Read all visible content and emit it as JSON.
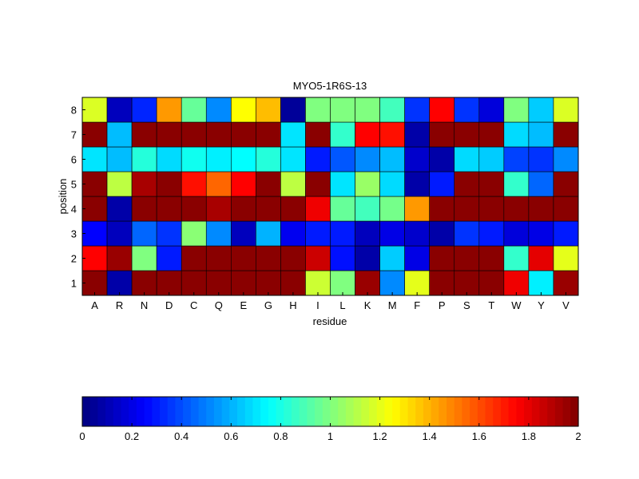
{
  "chart_data": {
    "type": "heatmap",
    "title": "MYO5-1R6S-13",
    "xlabel": "residue",
    "ylabel": "position",
    "x_categories": [
      "A",
      "R",
      "N",
      "D",
      "C",
      "Q",
      "E",
      "G",
      "H",
      "I",
      "L",
      "K",
      "M",
      "F",
      "P",
      "S",
      "T",
      "W",
      "Y",
      "V"
    ],
    "y_categories": [
      "1",
      "2",
      "3",
      "4",
      "5",
      "6",
      "7",
      "8"
    ],
    "values": [
      [
        1.98,
        0.08,
        1.98,
        1.98,
        1.98,
        1.98,
        1.98,
        1.98,
        1.98,
        1.15,
        1.0,
        1.95,
        0.52,
        1.2,
        1.98,
        1.98,
        1.98,
        1.78,
        0.72,
        1.95
      ],
      [
        1.75,
        1.95,
        1.0,
        0.3,
        1.98,
        1.98,
        1.98,
        1.98,
        1.98,
        1.85,
        0.28,
        0.08,
        0.65,
        0.2,
        1.98,
        1.98,
        1.98,
        0.85,
        1.8,
        1.2
      ],
      [
        0.25,
        0.12,
        0.45,
        0.35,
        1.02,
        0.52,
        0.12,
        0.6,
        0.22,
        0.3,
        0.3,
        0.12,
        0.2,
        0.15,
        0.08,
        0.35,
        0.3,
        0.18,
        0.2,
        0.3
      ],
      [
        1.98,
        0.08,
        1.98,
        1.98,
        1.98,
        1.92,
        1.98,
        1.98,
        1.98,
        1.78,
        0.95,
        0.88,
        0.98,
        1.45,
        1.98,
        1.98,
        1.98,
        1.98,
        1.98,
        1.98
      ],
      [
        1.98,
        1.12,
        1.92,
        1.98,
        1.72,
        1.55,
        1.75,
        1.98,
        1.12,
        1.98,
        0.7,
        1.05,
        0.68,
        0.08,
        0.3,
        1.98,
        1.98,
        0.85,
        0.45,
        1.98
      ],
      [
        0.7,
        0.62,
        0.82,
        0.68,
        0.78,
        0.72,
        0.75,
        0.82,
        0.7,
        0.3,
        0.42,
        0.52,
        0.62,
        0.15,
        0.08,
        0.68,
        0.65,
        0.38,
        0.35,
        0.52
      ],
      [
        1.98,
        0.62,
        1.98,
        1.98,
        1.98,
        1.98,
        1.98,
        1.98,
        0.7,
        1.98,
        0.85,
        1.75,
        1.72,
        0.08,
        1.98,
        1.98,
        1.98,
        0.68,
        0.62,
        1.98
      ],
      [
        1.18,
        0.12,
        0.32,
        1.45,
        0.95,
        0.52,
        1.25,
        1.38,
        0.05,
        1.0,
        1.0,
        1.0,
        0.88,
        0.35,
        1.75,
        0.35,
        0.18,
        1.0,
        0.65,
        1.18
      ]
    ],
    "colormap": "jet",
    "clim": [
      0,
      2
    ],
    "colorbar": {
      "orientation": "horizontal",
      "ticks": [
        "0",
        "0.2",
        "0.4",
        "0.6",
        "0.8",
        "1",
        "1.2",
        "1.4",
        "1.6",
        "1.8",
        "2"
      ]
    }
  }
}
